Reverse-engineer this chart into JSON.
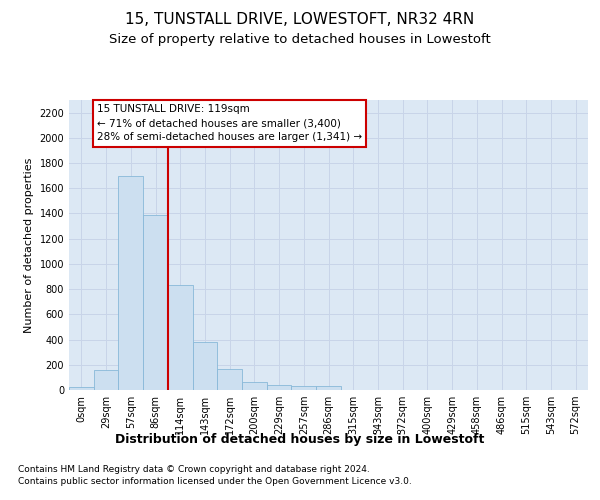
{
  "title": "15, TUNSTALL DRIVE, LOWESTOFT, NR32 4RN",
  "subtitle": "Size of property relative to detached houses in Lowestoft",
  "xlabel": "Distribution of detached houses by size in Lowestoft",
  "ylabel": "Number of detached properties",
  "footer_line1": "Contains HM Land Registry data © Crown copyright and database right 2024.",
  "footer_line2": "Contains public sector information licensed under the Open Government Licence v3.0.",
  "bin_labels": [
    "0sqm",
    "29sqm",
    "57sqm",
    "86sqm",
    "114sqm",
    "143sqm",
    "172sqm",
    "200sqm",
    "229sqm",
    "257sqm",
    "286sqm",
    "315sqm",
    "343sqm",
    "372sqm",
    "400sqm",
    "429sqm",
    "458sqm",
    "486sqm",
    "515sqm",
    "543sqm",
    "572sqm"
  ],
  "bar_values": [
    20,
    155,
    1700,
    1390,
    835,
    380,
    165,
    65,
    40,
    30,
    30,
    0,
    0,
    0,
    0,
    0,
    0,
    0,
    0,
    0,
    0
  ],
  "bar_color": "#ccdff0",
  "bar_edge_color": "#88b8d8",
  "highlight_line_index": 4,
  "highlight_box_text_line1": "15 TUNSTALL DRIVE: 119sqm",
  "highlight_box_text_line2": "← 71% of detached houses are smaller (3,400)",
  "highlight_box_text_line3": "28% of semi-detached houses are larger (1,341) →",
  "highlight_box_color": "#cc0000",
  "ylim": [
    0,
    2300
  ],
  "yticks": [
    0,
    200,
    400,
    600,
    800,
    1000,
    1200,
    1400,
    1600,
    1800,
    2000,
    2200
  ],
  "grid_color": "#c8d4e8",
  "bg_color": "#dce8f4",
  "title_fontsize": 11,
  "subtitle_fontsize": 9.5,
  "ylabel_fontsize": 8,
  "xlabel_fontsize": 9,
  "tick_fontsize": 7,
  "annotation_fontsize": 7.5,
  "footer_fontsize": 6.5
}
